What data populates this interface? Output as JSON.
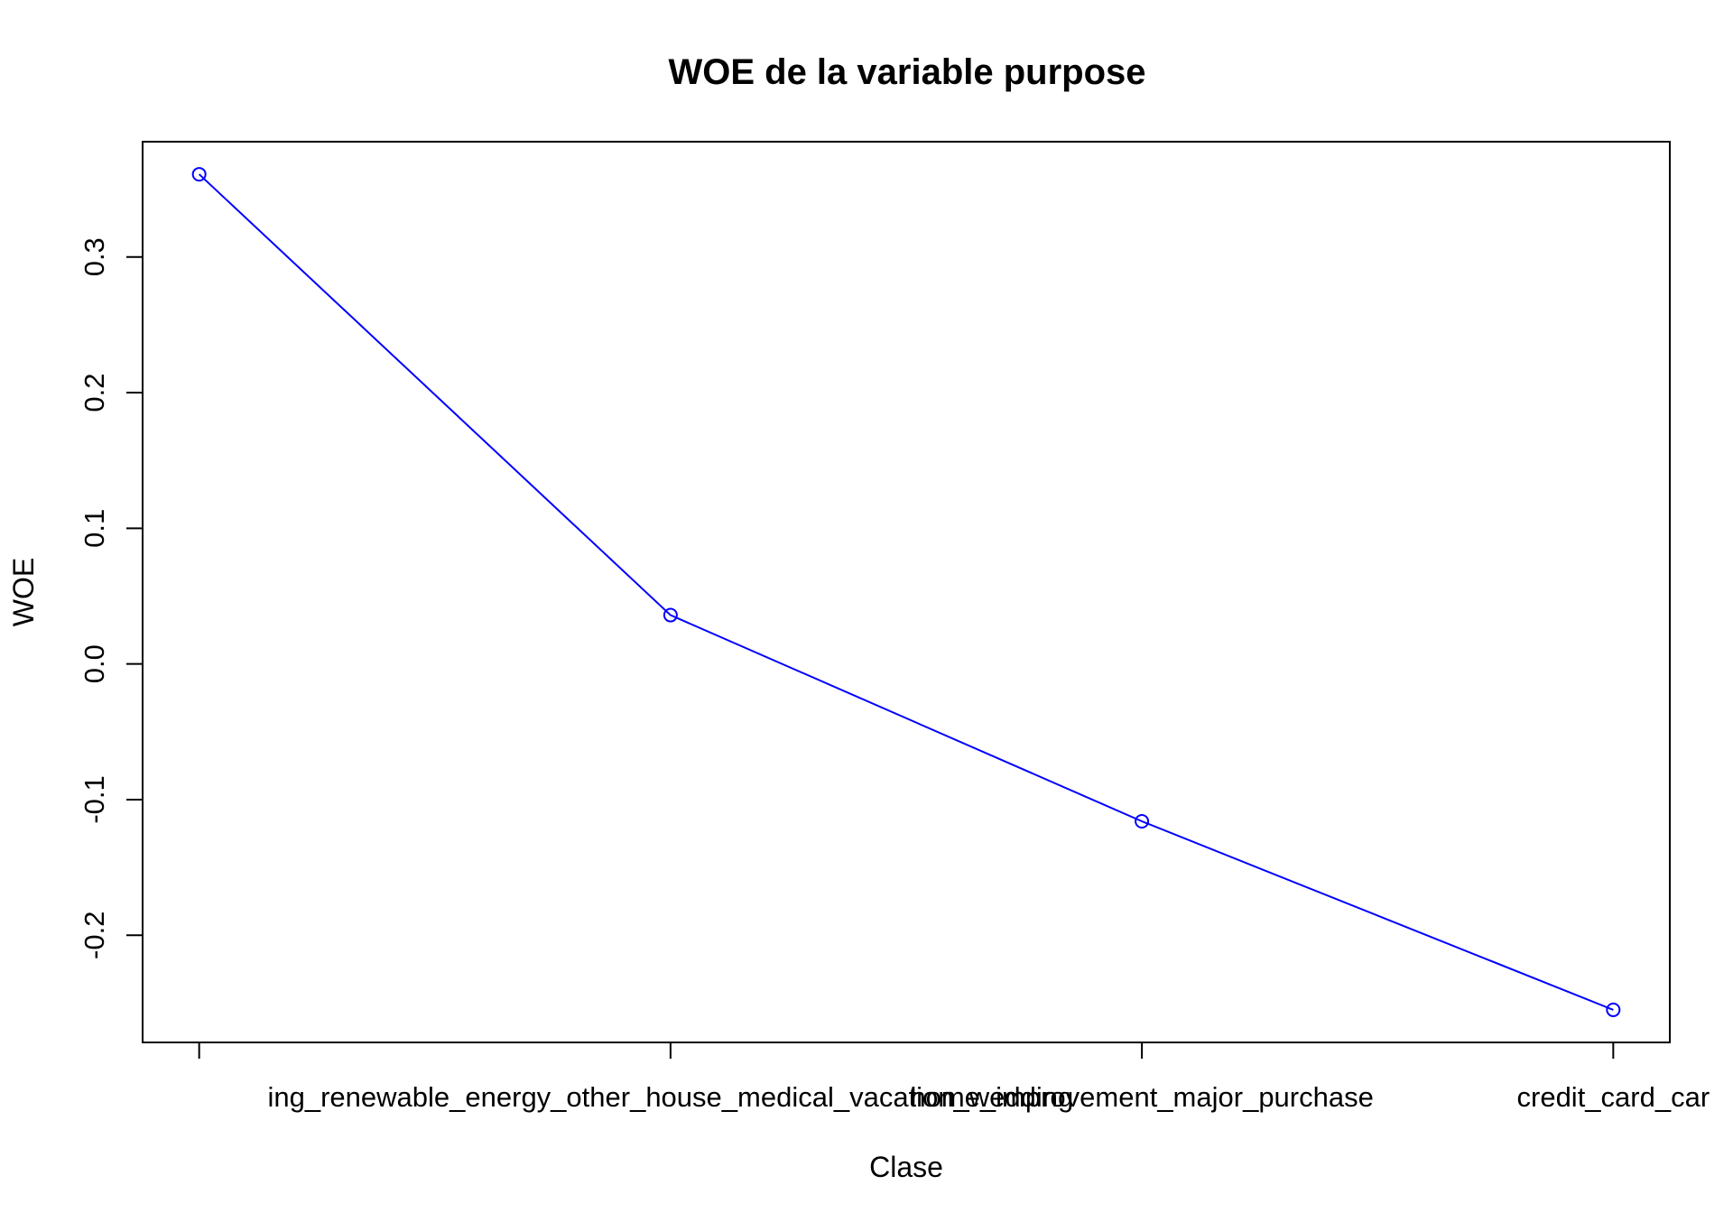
{
  "chart_data": {
    "type": "line",
    "title": "WOE de la variable purpose",
    "xlabel": "Clase",
    "ylabel": "WOE",
    "categories": [
      "ing_renewable_energy_other_house_medical_vacation_wedding",
      "home_improvement_major_purchase",
      "credit_card_car"
    ],
    "x_tick_positions": [
      2,
      3,
      4
    ],
    "x": [
      1,
      2,
      3,
      4
    ],
    "y": [
      0.361,
      0.036,
      -0.116,
      -0.255
    ],
    "xlim": [
      0.88,
      4.12
    ],
    "ylim": [
      -0.279,
      0.385
    ],
    "yticks": [
      -0.2,
      -0.1,
      0.0,
      0.1,
      0.2,
      0.3
    ],
    "ytick_labels": [
      "-0.2",
      "-0.1",
      "0.0",
      "0.1",
      "0.2",
      "0.3"
    ],
    "line_color": "#0000ff",
    "marker": "open-circle",
    "grid": false,
    "legend": "none"
  }
}
